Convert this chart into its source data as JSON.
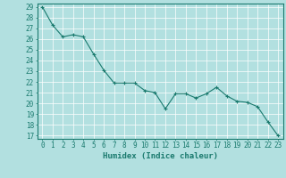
{
  "x": [
    0,
    1,
    2,
    3,
    4,
    5,
    6,
    7,
    8,
    9,
    10,
    11,
    12,
    13,
    14,
    15,
    16,
    17,
    18,
    19,
    20,
    21,
    22,
    23
  ],
  "y": [
    29,
    27.3,
    26.2,
    26.4,
    26.2,
    24.6,
    23.1,
    21.9,
    21.9,
    21.9,
    21.2,
    21.0,
    19.5,
    20.9,
    20.9,
    20.5,
    20.9,
    21.5,
    20.7,
    20.2,
    20.1,
    19.7,
    18.3,
    17.0
  ],
  "line_color": "#1a7a6e",
  "marker_color": "#1a7a6e",
  "bg_color": "#b2e0e0",
  "grid_color": "#ffffff",
  "axis_color": "#1a7a6e",
  "xlabel": "Humidex (Indice chaleur)",
  "ylim_min": 17,
  "ylim_max": 29,
  "xlim_min": -0.5,
  "xlim_max": 23.5,
  "yticks": [
    17,
    18,
    19,
    20,
    21,
    22,
    23,
    24,
    25,
    26,
    27,
    28,
    29
  ],
  "xticks": [
    0,
    1,
    2,
    3,
    4,
    5,
    6,
    7,
    8,
    9,
    10,
    11,
    12,
    13,
    14,
    15,
    16,
    17,
    18,
    19,
    20,
    21,
    22,
    23
  ],
  "xlabel_fontsize": 6.5,
  "tick_fontsize": 5.5
}
